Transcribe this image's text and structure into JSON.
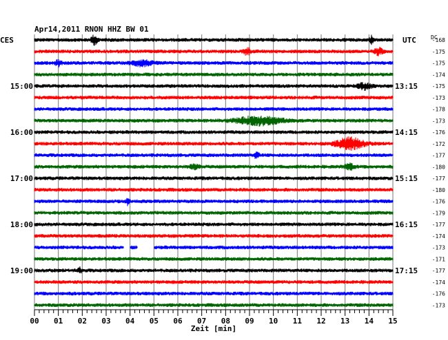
{
  "chart_data": {
    "type": "line",
    "title": "Apr14,2011   RNON HHZ BW 01",
    "left_timezone": "CES",
    "right_timezone": "UTC",
    "dc_header": "DC",
    "xlabel": "Zeit [min]",
    "xlim": [
      0,
      15
    ],
    "x_ticks": [
      "00",
      "01",
      "02",
      "03",
      "04",
      "05",
      "06",
      "07",
      "08",
      "09",
      "10",
      "11",
      "12",
      "13",
      "14",
      "15"
    ],
    "left_hour_labels": [
      {
        "label": "15:00",
        "trace": 4
      },
      {
        "label": "16:00",
        "trace": 8
      },
      {
        "label": "17:00",
        "trace": 12
      },
      {
        "label": "18:00",
        "trace": 16
      },
      {
        "label": "19:00",
        "trace": 20
      }
    ],
    "right_hour_labels": [
      {
        "label": "13:15",
        "trace": 4
      },
      {
        "label": "14:15",
        "trace": 8
      },
      {
        "label": "15:15",
        "trace": 12
      },
      {
        "label": "16:15",
        "trace": 16
      },
      {
        "label": "17:15",
        "trace": 20
      }
    ],
    "trace_colors": [
      "#000000",
      "#ff0000",
      "#0000ff",
      "#006400"
    ],
    "dc_values": [
      -168,
      -175,
      -175,
      -174,
      -175,
      -173,
      -178,
      -173,
      -176,
      -172,
      -177,
      -180,
      -177,
      -180,
      -176,
      -179,
      -177,
      -174,
      -173,
      -171,
      -177,
      -174,
      -176,
      -173
    ],
    "events": [
      {
        "trace": 0,
        "at": 2.5,
        "width": 0.35,
        "amp": 2.2
      },
      {
        "trace": 0,
        "at": 14.1,
        "width": 0.2,
        "amp": 2.0
      },
      {
        "trace": 1,
        "at": 8.9,
        "width": 0.35,
        "amp": 1.8
      },
      {
        "trace": 1,
        "at": 14.4,
        "width": 0.4,
        "amp": 1.8
      },
      {
        "trace": 2,
        "at": 1.0,
        "width": 0.3,
        "amp": 1.5
      },
      {
        "trace": 2,
        "at": 4.5,
        "width": 1.0,
        "amp": 1.4
      },
      {
        "trace": 4,
        "at": 13.8,
        "width": 0.7,
        "amp": 1.6
      },
      {
        "trace": 7,
        "at": 9.4,
        "width": 2.3,
        "amp": 2.2
      },
      {
        "trace": 9,
        "at": 13.2,
        "width": 1.4,
        "amp": 3.0
      },
      {
        "trace": 10,
        "at": 9.3,
        "width": 0.25,
        "amp": 1.6
      },
      {
        "trace": 11,
        "at": 6.7,
        "width": 0.5,
        "amp": 1.2
      },
      {
        "trace": 11,
        "at": 13.2,
        "width": 0.5,
        "amp": 1.6
      },
      {
        "trace": 14,
        "at": 3.9,
        "width": 0.2,
        "amp": 1.6
      },
      {
        "trace": 20,
        "at": 1.9,
        "width": 0.2,
        "amp": 1.4
      }
    ],
    "gaps": [
      {
        "trace": 18,
        "from": 3.75,
        "to": 4.0
      },
      {
        "trace": 18,
        "from": 4.3,
        "to": 5.0
      }
    ],
    "grid": true
  }
}
